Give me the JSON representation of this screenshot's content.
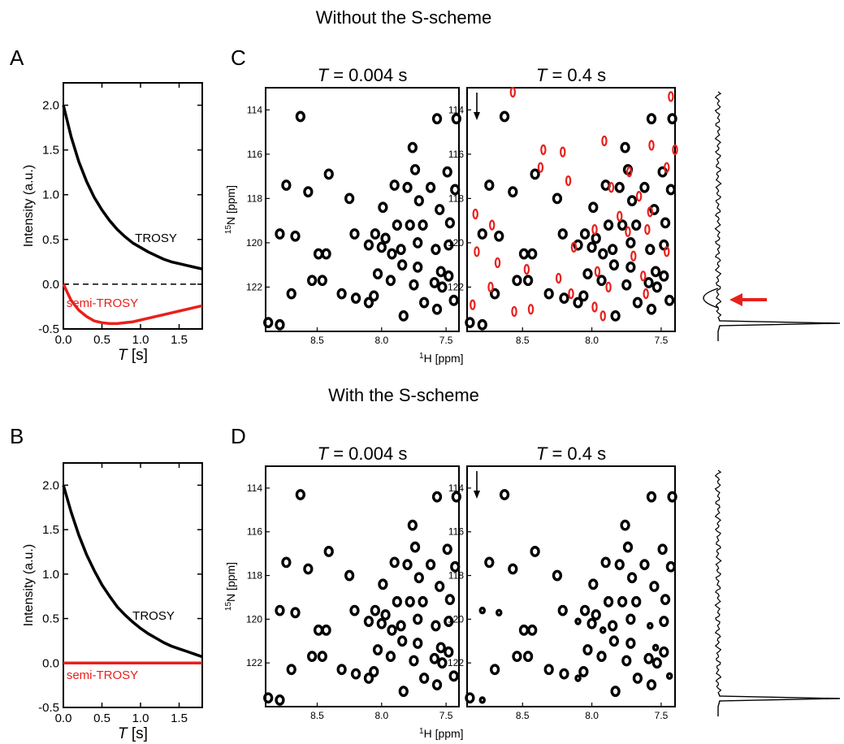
{
  "headers": {
    "top": "Without the S-scheme",
    "bottom": "With the S-scheme"
  },
  "panel_letters": [
    "A",
    "B",
    "C",
    "D"
  ],
  "chart_data": [
    {
      "id": "A",
      "type": "line",
      "xlabel_italic": "T",
      "xlabel_unit": " [s]",
      "ylabel": "Intensity (a.u.)",
      "xlim": [
        0,
        1.8
      ],
      "ylim": [
        -0.5,
        2.25
      ],
      "xticks": [
        "0.0",
        "0.5",
        "1.0",
        "1.5"
      ],
      "yticks": [
        "-0.5",
        "0.0",
        "0.5",
        "1.0",
        "1.5",
        "2.0"
      ],
      "zero_line": "dashed",
      "series": [
        {
          "name": "TROSY",
          "color": "#000000",
          "x": [
            0,
            0.1,
            0.2,
            0.3,
            0.4,
            0.5,
            0.6,
            0.7,
            0.8,
            0.9,
            1.0,
            1.1,
            1.2,
            1.3,
            1.4,
            1.5,
            1.6,
            1.7,
            1.8
          ],
          "y": [
            2.0,
            1.65,
            1.37,
            1.15,
            0.97,
            0.83,
            0.71,
            0.61,
            0.53,
            0.46,
            0.41,
            0.36,
            0.32,
            0.28,
            0.25,
            0.23,
            0.21,
            0.19,
            0.17
          ]
        },
        {
          "name": "semi-TROSY",
          "color": "#e8201c",
          "x": [
            0,
            0.1,
            0.2,
            0.3,
            0.4,
            0.5,
            0.6,
            0.7,
            0.8,
            0.9,
            1.0,
            1.1,
            1.2,
            1.3,
            1.4,
            1.5,
            1.6,
            1.7,
            1.8
          ],
          "y": [
            0.0,
            -0.18,
            -0.29,
            -0.36,
            -0.41,
            -0.43,
            -0.44,
            -0.44,
            -0.43,
            -0.42,
            -0.4,
            -0.38,
            -0.36,
            -0.34,
            -0.32,
            -0.3,
            -0.28,
            -0.26,
            -0.24
          ]
        }
      ]
    },
    {
      "id": "B",
      "type": "line",
      "xlabel_italic": "T",
      "xlabel_unit": " [s]",
      "ylabel": "Intensity (a.u.)",
      "xlim": [
        0,
        1.8
      ],
      "ylim": [
        -0.5,
        2.25
      ],
      "xticks": [
        "0.0",
        "0.5",
        "1.0",
        "1.5"
      ],
      "yticks": [
        "-0.5",
        "0.0",
        "0.5",
        "1.0",
        "1.5",
        "2.0"
      ],
      "zero_line": "dashed",
      "series": [
        {
          "name": "TROSY",
          "color": "#000000",
          "x": [
            0,
            0.1,
            0.2,
            0.3,
            0.4,
            0.5,
            0.6,
            0.7,
            0.8,
            0.9,
            1.0,
            1.1,
            1.2,
            1.3,
            1.4,
            1.5,
            1.6,
            1.7,
            1.8
          ],
          "y": [
            2.0,
            1.7,
            1.44,
            1.22,
            1.04,
            0.88,
            0.75,
            0.63,
            0.54,
            0.46,
            0.39,
            0.33,
            0.28,
            0.23,
            0.19,
            0.16,
            0.13,
            0.1,
            0.07
          ]
        },
        {
          "name": "semi-TROSY",
          "color": "#e8201c",
          "x": [
            0,
            1.8
          ],
          "y": [
            0.0,
            0.0
          ]
        }
      ]
    },
    {
      "id": "C",
      "type": "scatter",
      "xlabel": "1H [ppm]",
      "ylabel": "15N [ppm]",
      "xlim": [
        8.9,
        7.4
      ],
      "ylim": [
        124,
        113
      ],
      "xticks": [
        "8.5",
        "8.0",
        "7.5"
      ],
      "yticks": [
        "114",
        "116",
        "118",
        "120",
        "122"
      ],
      "spectra": [
        {
          "title_italic": "T",
          "title_rest": " = 0.004 s",
          "arrow": false,
          "red_peaks": false
        },
        {
          "title_italic": "T",
          "title_rest": " = 0.4 s",
          "arrow": true,
          "red_peaks": true
        }
      ],
      "projection": "with_peak_and_red_arrow"
    },
    {
      "id": "D",
      "type": "scatter",
      "xlabel": "1H [ppm]",
      "ylabel": "15N [ppm]",
      "xlim": [
        8.9,
        7.4
      ],
      "ylim": [
        124,
        113
      ],
      "xticks": [
        "8.5",
        "8.0",
        "7.5"
      ],
      "yticks": [
        "114",
        "116",
        "118",
        "120",
        "122"
      ],
      "spectra": [
        {
          "title_italic": "T",
          "title_rest": " = 0.004 s",
          "arrow": false,
          "red_peaks": false
        },
        {
          "title_italic": "T",
          "title_rest": " = 0.4 s",
          "arrow": true,
          "red_peaks": false
        }
      ],
      "projection": "flat"
    }
  ],
  "peaks_black": [
    [
      8.63,
      114.3
    ],
    [
      7.57,
      114.4
    ],
    [
      7.42,
      114.4
    ],
    [
      8.41,
      116.9
    ],
    [
      7.76,
      115.7
    ],
    [
      7.74,
      116.7
    ],
    [
      7.49,
      116.8
    ],
    [
      8.57,
      117.7
    ],
    [
      8.74,
      117.4
    ],
    [
      8.25,
      118.0
    ],
    [
      7.9,
      117.4
    ],
    [
      7.8,
      117.5
    ],
    [
      7.62,
      117.5
    ],
    [
      7.43,
      117.6
    ],
    [
      7.99,
      118.4
    ],
    [
      7.71,
      118.1
    ],
    [
      7.55,
      118.5
    ],
    [
      8.21,
      119.6
    ],
    [
      8.05,
      119.6
    ],
    [
      7.97,
      119.8
    ],
    [
      7.88,
      119.2
    ],
    [
      7.78,
      119.2
    ],
    [
      7.68,
      119.2
    ],
    [
      7.47,
      119.1
    ],
    [
      8.79,
      119.6
    ],
    [
      8.67,
      119.7
    ],
    [
      8.1,
      120.1
    ],
    [
      8.0,
      120.2
    ],
    [
      7.92,
      120.5
    ],
    [
      7.85,
      120.3
    ],
    [
      7.72,
      120.0
    ],
    [
      7.58,
      120.3
    ],
    [
      7.48,
      120.1
    ],
    [
      8.49,
      120.5
    ],
    [
      8.43,
      120.5
    ],
    [
      7.84,
      121.0
    ],
    [
      7.72,
      121.1
    ],
    [
      7.54,
      121.3
    ],
    [
      8.03,
      121.4
    ],
    [
      7.93,
      121.7
    ],
    [
      7.75,
      121.9
    ],
    [
      7.59,
      121.8
    ],
    [
      7.48,
      121.5
    ],
    [
      8.54,
      121.7
    ],
    [
      8.46,
      121.7
    ],
    [
      8.31,
      122.3
    ],
    [
      8.06,
      122.4
    ],
    [
      8.2,
      122.5
    ],
    [
      8.7,
      122.3
    ],
    [
      7.67,
      122.7
    ],
    [
      7.53,
      122.0
    ],
    [
      7.44,
      122.6
    ],
    [
      8.1,
      122.7
    ],
    [
      7.83,
      123.3
    ],
    [
      7.57,
      123.0
    ],
    [
      8.88,
      123.6
    ],
    [
      8.79,
      123.7
    ]
  ],
  "peaks_red": [
    [
      8.57,
      113.2
    ],
    [
      7.43,
      113.4
    ],
    [
      7.91,
      115.4
    ],
    [
      8.35,
      115.8
    ],
    [
      8.21,
      115.9
    ],
    [
      7.57,
      115.6
    ],
    [
      7.4,
      115.8
    ],
    [
      8.37,
      116.6
    ],
    [
      7.73,
      116.8
    ],
    [
      7.46,
      116.6
    ],
    [
      8.17,
      117.2
    ],
    [
      7.86,
      117.5
    ],
    [
      8.84,
      118.7
    ],
    [
      7.58,
      118.6
    ],
    [
      7.66,
      117.9
    ],
    [
      8.72,
      119.2
    ],
    [
      7.8,
      118.8
    ],
    [
      7.98,
      119.4
    ],
    [
      7.74,
      119.5
    ],
    [
      7.6,
      119.4
    ],
    [
      8.83,
      120.4
    ],
    [
      8.68,
      120.9
    ],
    [
      8.13,
      120.2
    ],
    [
      7.7,
      120.6
    ],
    [
      7.46,
      120.4
    ],
    [
      8.47,
      121.2
    ],
    [
      8.24,
      121.6
    ],
    [
      7.96,
      121.3
    ],
    [
      7.63,
      121.5
    ],
    [
      8.73,
      122.0
    ],
    [
      8.15,
      122.3
    ],
    [
      7.88,
      122.0
    ],
    [
      7.61,
      122.3
    ],
    [
      8.86,
      122.8
    ],
    [
      8.56,
      123.1
    ],
    [
      8.44,
      123.0
    ],
    [
      7.98,
      122.9
    ],
    [
      7.92,
      123.3
    ]
  ],
  "weak_peaks_D": [
    8.79,
    8.67,
    8.1,
    7.92,
    7.58,
    7.54,
    7.44
  ]
}
